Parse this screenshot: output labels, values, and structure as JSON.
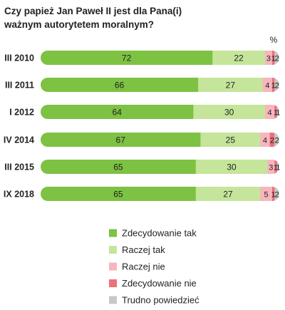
{
  "chart_data": {
    "type": "bar",
    "orientation": "horizontal",
    "stacked": true,
    "title_lines": [
      "Czy papież Jan Paweł II jest dla Pana(i)",
      "ważnym autorytetem moralnym?"
    ],
    "unit_label": "%",
    "categories": [
      "III 2010",
      "III 2011",
      "I 2012",
      "IV 2014",
      "III 2015",
      "IX 2018"
    ],
    "series": [
      {
        "name": "Zdecydowanie tak",
        "color": "#7dc242",
        "values": [
          72,
          66,
          64,
          67,
          65,
          65
        ]
      },
      {
        "name": "Raczej tak",
        "color": "#c5e59a",
        "values": [
          22,
          27,
          30,
          25,
          30,
          27
        ]
      },
      {
        "name": "Raczej nie",
        "color": "#f7b6bd",
        "values": [
          3,
          4,
          4,
          4,
          3,
          5
        ]
      },
      {
        "name": "Zdecydowanie nie",
        "color": "#ef6f7b",
        "values": [
          1,
          1,
          1,
          2,
          1,
          1
        ]
      },
      {
        "name": "Trudno powiedzieć",
        "color": "#c8c8c8",
        "values": [
          2,
          2,
          1,
          2,
          1,
          2
        ]
      }
    ],
    "legend_position": "bottom",
    "grid": false
  }
}
